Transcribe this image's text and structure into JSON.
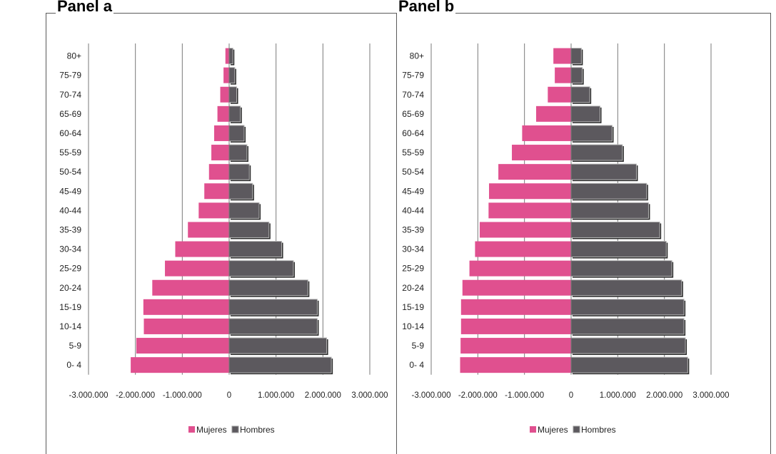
{
  "panels": [
    {
      "title": "Panel a"
    },
    {
      "title": "Panel b"
    }
  ],
  "chart_data": [
    {
      "type": "bar",
      "orientation": "horizontal",
      "title": "Panel a",
      "categories": [
        "0- 4",
        "5-9",
        "10-14",
        "15-19",
        "20-24",
        "25-29",
        "30-34",
        "35-39",
        "40-44",
        "45-49",
        "50-54",
        "55-59",
        "60-64",
        "65-69",
        "70-74",
        "75-79",
        "80+"
      ],
      "series": [
        {
          "name": "Mujeres",
          "color": "#e0508f",
          "values": [
            -2100000,
            -1980000,
            -1820000,
            -1830000,
            -1640000,
            -1370000,
            -1150000,
            -880000,
            -650000,
            -530000,
            -430000,
            -380000,
            -320000,
            -250000,
            -190000,
            -120000,
            -80000
          ]
        },
        {
          "name": "Hombres",
          "color": "#5c595e",
          "values": [
            2180000,
            2080000,
            1880000,
            1880000,
            1680000,
            1370000,
            1120000,
            850000,
            640000,
            500000,
            430000,
            380000,
            320000,
            240000,
            160000,
            120000,
            80000
          ]
        }
      ],
      "xlim": [
        -3000000,
        3000000
      ],
      "xticks": [
        "-3.000.000",
        "-2.000.000",
        "-1.000.000",
        "0",
        "1.000.000",
        "2.000.000",
        "3.000.000"
      ],
      "grid": true,
      "legend": "bottom"
    },
    {
      "type": "bar",
      "orientation": "horizontal",
      "title": "Panel b",
      "categories": [
        "0- 4",
        "5-9",
        "10-14",
        "15-19",
        "20-24",
        "25-29",
        "30-34",
        "35-39",
        "40-44",
        "45-49",
        "50-54",
        "55-59",
        "60-64",
        "65-69",
        "70-74",
        "75-79",
        "80+"
      ],
      "series": [
        {
          "name": "Mujeres",
          "color": "#e0508f",
          "values": [
            -2380000,
            -2370000,
            -2360000,
            -2360000,
            -2330000,
            -2180000,
            -2060000,
            -1960000,
            -1770000,
            -1760000,
            -1560000,
            -1270000,
            -1050000,
            -750000,
            -500000,
            -350000,
            -380000
          ]
        },
        {
          "name": "Hombres",
          "color": "#5c595e",
          "values": [
            2500000,
            2450000,
            2420000,
            2420000,
            2370000,
            2160000,
            2040000,
            1900000,
            1660000,
            1620000,
            1400000,
            1100000,
            880000,
            620000,
            400000,
            240000,
            220000
          ]
        }
      ],
      "xlim": [
        -3000000,
        3000000
      ],
      "xticks": [
        "-3.000.000",
        "-2.000.000",
        "-1.000.000",
        "0",
        "1.000.000",
        "2.000.000",
        "3.000.000"
      ],
      "grid": true,
      "legend": "bottom"
    }
  ]
}
